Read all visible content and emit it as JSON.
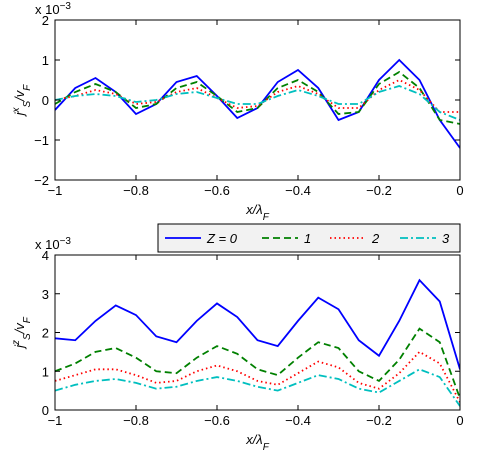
{
  "chart_data": [
    {
      "type": "line",
      "multiplier_base": "x 10",
      "multiplier_exponent": "−3",
      "xlabel": [
        {
          "text": "x/λ",
          "shift": "base"
        },
        {
          "text": "F",
          "shift": "sub"
        }
      ],
      "ylabel": [
        {
          "text": "j",
          "shift": "base"
        },
        {
          "text": "x",
          "shift": "sup"
        },
        {
          "text": "S",
          "shift": "sub"
        },
        {
          "text": "/v",
          "shift": "base"
        },
        {
          "text": "F",
          "shift": "sub"
        }
      ],
      "x": [
        -1,
        -0.95,
        -0.9,
        -0.85,
        -0.8,
        -0.75,
        -0.7,
        -0.65,
        -0.6,
        -0.55,
        -0.5,
        -0.45,
        -0.4,
        -0.35,
        -0.3,
        -0.25,
        -0.2,
        -0.15,
        -0.1,
        -0.05,
        0
      ],
      "xlim": [
        -1,
        0
      ],
      "xticks": [
        {
          "value": -1,
          "label": "−1"
        },
        {
          "value": -0.8,
          "label": "−0.8"
        },
        {
          "value": -0.6,
          "label": "−0.6"
        },
        {
          "value": -0.4,
          "label": "−0.4"
        },
        {
          "value": -0.2,
          "label": "−0.2"
        },
        0
      ],
      "ylim": [
        -2,
        2
      ],
      "yticks": [
        {
          "value": -2,
          "label": "−2"
        },
        {
          "value": -1,
          "label": "−1"
        },
        0,
        1,
        2
      ],
      "grid": false,
      "series": [
        {
          "color": "#0000ff",
          "dash": "solid",
          "values": [
            -0.25,
            0.3,
            0.55,
            0.2,
            -0.35,
            -0.1,
            0.45,
            0.6,
            0.1,
            -0.45,
            -0.2,
            0.45,
            0.75,
            0.3,
            -0.5,
            -0.3,
            0.5,
            1.0,
            0.5,
            -0.5,
            -1.2
          ]
        },
        {
          "color": "#008000",
          "dash": "dashed",
          "values": [
            -0.1,
            0.2,
            0.4,
            0.2,
            -0.2,
            -0.1,
            0.3,
            0.45,
            0.1,
            -0.3,
            -0.2,
            0.3,
            0.5,
            0.2,
            -0.35,
            -0.3,
            0.4,
            0.7,
            0.3,
            -0.5,
            -0.6
          ]
        },
        {
          "color": "#ff0000",
          "dash": "dotted",
          "values": [
            0,
            0.1,
            0.25,
            0.15,
            -0.1,
            -0.05,
            0.2,
            0.3,
            0.05,
            -0.2,
            -0.15,
            0.2,
            0.35,
            0.15,
            -0.2,
            -0.2,
            0.25,
            0.5,
            0.25,
            -0.3,
            -0.3
          ]
        },
        {
          "color": "#00bfbf",
          "dash": "dashdot",
          "values": [
            0,
            0.1,
            0.15,
            0.1,
            -0.05,
            0,
            0.15,
            0.2,
            0.05,
            -0.1,
            -0.1,
            0.1,
            0.25,
            0.1,
            -0.1,
            -0.1,
            0.2,
            0.35,
            0.15,
            -0.3,
            -0.5
          ]
        }
      ]
    },
    {
      "type": "line",
      "multiplier_base": "x 10",
      "multiplier_exponent": "−3",
      "xlabel": [
        {
          "text": "x/λ",
          "shift": "base"
        },
        {
          "text": "F",
          "shift": "sub"
        }
      ],
      "ylabel": [
        {
          "text": "j",
          "shift": "base"
        },
        {
          "text": "z",
          "shift": "sup"
        },
        {
          "text": "S",
          "shift": "sub"
        },
        {
          "text": "/v",
          "shift": "base"
        },
        {
          "text": "F",
          "shift": "sub"
        }
      ],
      "x": [
        -1,
        -0.95,
        -0.9,
        -0.85,
        -0.8,
        -0.75,
        -0.7,
        -0.65,
        -0.6,
        -0.55,
        -0.5,
        -0.45,
        -0.4,
        -0.35,
        -0.3,
        -0.25,
        -0.2,
        -0.15,
        -0.1,
        -0.05,
        0
      ],
      "xlim": [
        -1,
        0
      ],
      "xticks": [
        {
          "value": -1,
          "label": "−1"
        },
        {
          "value": -0.8,
          "label": "−0.8"
        },
        {
          "value": -0.6,
          "label": "−0.6"
        },
        {
          "value": -0.4,
          "label": "−0.4"
        },
        {
          "value": -0.2,
          "label": "−0.2"
        },
        0
      ],
      "ylim": [
        0,
        4
      ],
      "yticks": [
        0,
        1,
        2,
        3,
        4
      ],
      "grid": false,
      "legend": "top",
      "series": [
        {
          "name": "Z = 0",
          "color": "#0000ff",
          "dash": "solid",
          "values": [
            1.85,
            1.8,
            2.3,
            2.7,
            2.45,
            1.9,
            1.75,
            2.3,
            2.75,
            2.4,
            1.8,
            1.65,
            2.3,
            2.9,
            2.6,
            1.8,
            1.4,
            2.3,
            3.35,
            2.8,
            1.05
          ]
        },
        {
          "name": "1",
          "color": "#008000",
          "dash": "dashed",
          "values": [
            1.0,
            1.2,
            1.5,
            1.6,
            1.35,
            1.0,
            0.95,
            1.35,
            1.65,
            1.45,
            1.05,
            0.9,
            1.35,
            1.75,
            1.6,
            1.0,
            0.75,
            1.3,
            2.1,
            1.75,
            0.3
          ]
        },
        {
          "name": "2",
          "color": "#ff0000",
          "dash": "dotted",
          "values": [
            0.75,
            0.9,
            1.05,
            1.05,
            0.9,
            0.7,
            0.75,
            1.0,
            1.15,
            1.0,
            0.75,
            0.65,
            0.95,
            1.25,
            1.1,
            0.7,
            0.55,
            0.95,
            1.5,
            1.2,
            0.2
          ]
        },
        {
          "name": "3",
          "color": "#00bfbf",
          "dash": "dashdot",
          "values": [
            0.5,
            0.65,
            0.75,
            0.8,
            0.7,
            0.55,
            0.6,
            0.75,
            0.85,
            0.75,
            0.6,
            0.5,
            0.7,
            0.9,
            0.8,
            0.55,
            0.45,
            0.75,
            1.05,
            0.85,
            0.1
          ]
        }
      ]
    }
  ]
}
